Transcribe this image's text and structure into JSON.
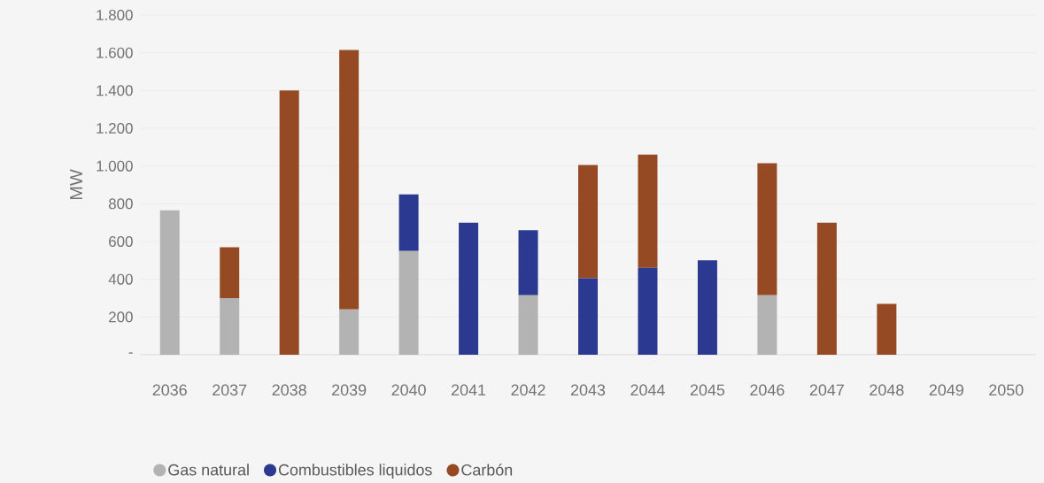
{
  "chart_data": {
    "type": "bar",
    "stacked": true,
    "ylabel": "MW",
    "categories": [
      "2036",
      "2037",
      "2038",
      "2039",
      "2040",
      "2041",
      "2042",
      "2043",
      "2044",
      "2045",
      "2046",
      "2047",
      "2048",
      "2049",
      "2050"
    ],
    "series": [
      {
        "name": "Gas natural",
        "color": "#b3b3b3",
        "values": [
          765,
          300,
          0,
          240,
          550,
          0,
          315,
          0,
          0,
          0,
          315,
          0,
          0,
          0,
          0
        ]
      },
      {
        "name": "Combustibles liquidos",
        "color": "#2b3990",
        "values": [
          0,
          0,
          0,
          0,
          300,
          700,
          345,
          405,
          460,
          500,
          0,
          0,
          0,
          0,
          0
        ]
      },
      {
        "name": "Carbón",
        "color": "#964a23",
        "values": [
          0,
          270,
          1400,
          1375,
          0,
          0,
          0,
          600,
          600,
          0,
          700,
          700,
          270,
          0,
          0
        ]
      }
    ],
    "ylim": [
      0,
      1800
    ],
    "yticks": [
      {
        "value": 0,
        "label": "-"
      },
      {
        "value": 200,
        "label": "200"
      },
      {
        "value": 400,
        "label": "400"
      },
      {
        "value": 600,
        "label": "600"
      },
      {
        "value": 800,
        "label": "800"
      },
      {
        "value": 1000,
        "label": "1.000"
      },
      {
        "value": 1200,
        "label": "1.200"
      },
      {
        "value": 1400,
        "label": "1.400"
      },
      {
        "value": 1600,
        "label": "1.600"
      },
      {
        "value": 1800,
        "label": "1.800"
      }
    ],
    "grid": "y",
    "legend": "bottom",
    "marker": "circle"
  }
}
